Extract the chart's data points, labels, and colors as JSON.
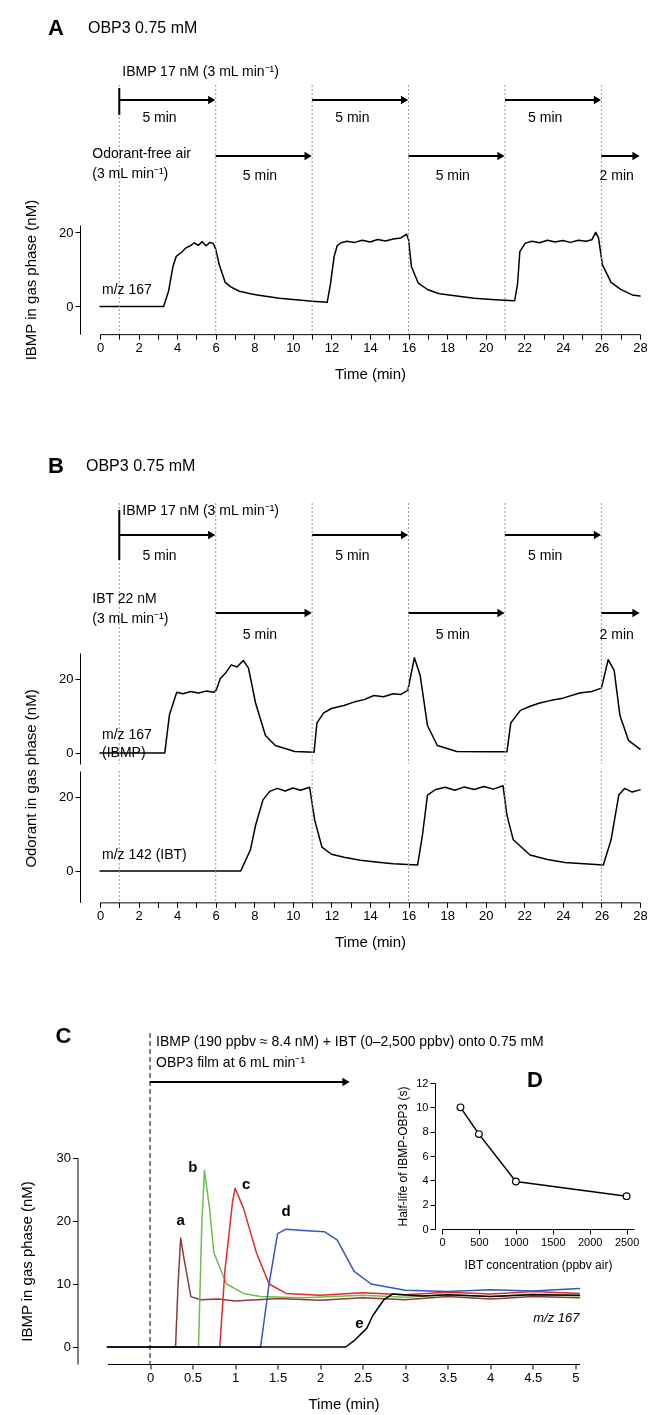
{
  "chart_data": [
    {
      "type": "line",
      "title": "A",
      "subtitle": "OBP3  0.75 mM",
      "xlabel": "Time (min)",
      "ylabel": "IBMP in gas phase (nM)",
      "annotations": [
        "IBMP 17 nM (3 mL min⁻¹)",
        "5 min",
        "5 min",
        "5 min",
        "Odorant-free air (3 mL min⁻¹)",
        "5 min",
        "5 min",
        "2 min"
      ],
      "xlim": [
        0,
        28
      ],
      "ylim": [
        -7.5,
        22
      ],
      "xticks": [
        0,
        {
          "value": 1,
          "label": null
        },
        2,
        {
          "value": 3,
          "label": null
        },
        4,
        {
          "value": 5,
          "label": null
        },
        6,
        {
          "value": 7,
          "label": null
        },
        8,
        {
          "value": 9,
          "label": null
        },
        10,
        {
          "value": 11,
          "label": null
        },
        12,
        {
          "value": 13,
          "label": null
        },
        14,
        {
          "value": 15,
          "label": null
        },
        16,
        {
          "value": 17,
          "label": null
        },
        18,
        {
          "value": 19,
          "label": null
        },
        20,
        {
          "value": 21,
          "label": null
        },
        22,
        {
          "value": 23,
          "label": null
        },
        24,
        {
          "value": 25,
          "label": null
        },
        26,
        {
          "value": 27,
          "label": null
        },
        28
      ],
      "yticks": [
        0,
        20
      ],
      "ref_lines": [
        {
          "axis": "x",
          "value": 1,
          "color": "#999999",
          "line_style": "dotted"
        },
        {
          "axis": "x",
          "value": 6,
          "color": "#999999",
          "line_style": "dotted"
        },
        {
          "axis": "x",
          "value": 11,
          "color": "#999999",
          "line_style": "dotted"
        },
        {
          "axis": "x",
          "value": 16,
          "color": "#999999",
          "line_style": "dotted"
        },
        {
          "axis": "x",
          "value": 21,
          "color": "#999999",
          "line_style": "dotted"
        },
        {
          "axis": "x",
          "value": 26,
          "color": "#999999",
          "line_style": "dotted"
        }
      ],
      "series": [
        {
          "name": "m/z 167",
          "color": "#000000",
          "x": [
            0,
            1,
            2,
            3,
            3.3,
            3.55,
            3.78,
            3.95,
            4.2,
            4.45,
            4.69,
            4.9,
            5.1,
            5.3,
            5.5,
            5.7,
            5.87,
            6.0,
            6.18,
            6.49,
            6.8,
            7.23,
            7.8,
            8.5,
            9.3,
            10.3,
            11.0,
            11.78,
            11.95,
            12.14,
            12.3,
            12.5,
            12.8,
            13.2,
            13.6,
            14.0,
            14.4,
            14.8,
            15.2,
            15.6,
            15.9,
            16.0,
            16.15,
            16.5,
            17.0,
            17.6,
            18.5,
            19.4,
            20.5,
            21.5,
            21.65,
            21.77,
            22.05,
            22.4,
            22.8,
            23.2,
            23.6,
            24.0,
            24.4,
            24.8,
            25.2,
            25.5,
            25.7,
            25.85,
            26.05,
            26.5,
            27.0,
            27.6,
            28
          ],
          "values": [
            0,
            0,
            0,
            0,
            0,
            4,
            10.7,
            13.5,
            14.5,
            15.8,
            16.4,
            17.2,
            16.5,
            17.5,
            16.4,
            17.3,
            17,
            15.5,
            11.3,
            6.5,
            5.2,
            4.1,
            3.4,
            2.8,
            2.2,
            1.7,
            1.4,
            1.1,
            6,
            13.5,
            16.4,
            17.2,
            17.6,
            17.3,
            17.9,
            17.4,
            18.1,
            17.7,
            18.2,
            18.5,
            19.5,
            18,
            10.7,
            6.3,
            4.5,
            3.4,
            2.8,
            2.2,
            1.8,
            1.5,
            6,
            14.8,
            17.1,
            17.6,
            17.2,
            17.9,
            17.4,
            17.8,
            17.3,
            17.9,
            17.6,
            18,
            20,
            18.5,
            11.3,
            6.5,
            4.6,
            3.1,
            2.8
          ]
        }
      ]
    },
    {
      "type": "line",
      "title": "B",
      "subtitle": "OBP3  0.75 mM",
      "annotations": [
        "IBMP 17 nM (3 mL min⁻¹)",
        "5 min",
        "5 min",
        "5 min",
        "IBT 22 nM (3 mL min⁻¹)",
        "5 min",
        "5 min",
        "2 min"
      ],
      "xlim": [
        0,
        28
      ],
      "ylim": [
        -3,
        27
      ],
      "yticks": [
        0,
        20
      ],
      "tick_labels": "y",
      "ref_lines": [
        {
          "axis": "x",
          "value": 1,
          "color": "#999999",
          "line_style": "dotted"
        },
        {
          "axis": "x",
          "value": 6,
          "color": "#999999",
          "line_style": "dotted"
        },
        {
          "axis": "x",
          "value": 11,
          "color": "#999999",
          "line_style": "dotted"
        },
        {
          "axis": "x",
          "value": 16,
          "color": "#999999",
          "line_style": "dotted"
        },
        {
          "axis": "x",
          "value": 21,
          "color": "#999999",
          "line_style": "dotted"
        },
        {
          "axis": "x",
          "value": 26,
          "color": "#999999",
          "line_style": "dotted"
        }
      ],
      "series": [
        {
          "name": "m/z 167 (IBMP)",
          "color": "#000000",
          "x": [
            0,
            1,
            2,
            3,
            3.36,
            3.6,
            3.98,
            4.3,
            4.7,
            5.1,
            5.5,
            5.9,
            6.03,
            6.24,
            6.5,
            6.8,
            7.1,
            7.43,
            7.7,
            8.07,
            8.58,
            9.09,
            10.1,
            11.1,
            11.25,
            11.6,
            12.0,
            12.65,
            13.2,
            13.7,
            14.2,
            14.7,
            15.2,
            15.6,
            15.96,
            16.3,
            16.6,
            16.98,
            17.49,
            18.5,
            20.0,
            21.1,
            21.3,
            21.8,
            22.3,
            22.8,
            23.4,
            24.0,
            24.87,
            25.5,
            26.0,
            26.35,
            26.66,
            26.96,
            27.4,
            28
          ],
          "values": [
            0,
            0,
            0,
            0,
            0,
            10.3,
            16.4,
            16.0,
            16.6,
            16.2,
            16.7,
            16.4,
            17,
            20.1,
            21.5,
            23.8,
            23.2,
            25,
            22.9,
            13.4,
            4.7,
            2,
            0.4,
            0.2,
            8.1,
            10.8,
            12.0,
            12.8,
            13.8,
            14.4,
            15.5,
            15.2,
            16.0,
            15.8,
            16.9,
            25.7,
            21,
            7.4,
            2,
            0.4,
            0.3,
            0.3,
            8.1,
            11.5,
            12.6,
            13.5,
            14.2,
            14.8,
            16.2,
            16.6,
            17.5,
            25.2,
            22.3,
            10.1,
            3.4,
            1
          ]
        }
      ]
    },
    {
      "type": "line",
      "xlabel": "Time (min)",
      "ylabel": "Odorant in gas phase (nM)",
      "xlim": [
        0,
        28
      ],
      "ylim": [
        -8.5,
        27
      ],
      "xticks": [
        0,
        {
          "value": 1,
          "label": null
        },
        2,
        {
          "value": 3,
          "label": null
        },
        4,
        {
          "value": 5,
          "label": null
        },
        6,
        {
          "value": 7,
          "label": null
        },
        8,
        {
          "value": 9,
          "label": null
        },
        10,
        {
          "value": 11,
          "label": null
        },
        12,
        {
          "value": 13,
          "label": null
        },
        14,
        {
          "value": 15,
          "label": null
        },
        16,
        {
          "value": 17,
          "label": null
        },
        18,
        {
          "value": 19,
          "label": null
        },
        20,
        {
          "value": 21,
          "label": null
        },
        22,
        {
          "value": 23,
          "label": null
        },
        24,
        {
          "value": 25,
          "label": null
        },
        26,
        {
          "value": 27,
          "label": null
        },
        28
      ],
      "yticks": [
        0,
        20
      ],
      "ref_lines": [
        {
          "axis": "x",
          "value": 1,
          "color": "#999999",
          "line_style": "dotted"
        },
        {
          "axis": "x",
          "value": 6,
          "color": "#999999",
          "line_style": "dotted"
        },
        {
          "axis": "x",
          "value": 11,
          "color": "#999999",
          "line_style": "dotted"
        },
        {
          "axis": "x",
          "value": 16,
          "color": "#999999",
          "line_style": "dotted"
        },
        {
          "axis": "x",
          "value": 21,
          "color": "#999999",
          "line_style": "dotted"
        },
        {
          "axis": "x",
          "value": 26,
          "color": "#999999",
          "line_style": "dotted"
        }
      ],
      "series": [
        {
          "name": "m/z 142 (IBT)",
          "color": "#000000",
          "x": [
            0,
            2,
            4,
            6,
            7.3,
            7.8,
            8.07,
            8.45,
            8.8,
            9.2,
            9.6,
            10.0,
            10.4,
            10.87,
            11.13,
            11.51,
            12.0,
            12.65,
            13.5,
            14.3,
            15.2,
            16.47,
            16.72,
            16.98,
            17.4,
            17.9,
            18.4,
            18.9,
            19.4,
            19.9,
            20.4,
            20.9,
            21.1,
            21.43,
            22.3,
            23.2,
            24.1,
            25.1,
            26.1,
            26.5,
            26.9,
            27.2,
            27.6,
            28
          ],
          "values": [
            0,
            0,
            0,
            0,
            0,
            5.7,
            12.4,
            19.2,
            21.5,
            22.3,
            21.6,
            22.4,
            21.8,
            22.6,
            13.8,
            6.4,
            4.5,
            3.7,
            2.9,
            2.4,
            1.9,
            1.6,
            9.7,
            20.5,
            22.0,
            22.6,
            21.8,
            22.7,
            22.0,
            22.8,
            22.1,
            23,
            15.1,
            8.4,
            4.3,
            3.1,
            2.3,
            1.9,
            1.6,
            8.4,
            20.5,
            22.3,
            21.3,
            21.9
          ]
        }
      ]
    },
    {
      "type": "line",
      "title": "C",
      "xlabel": "Time (min)",
      "ylabel": "IBMP in gas phase (nM)",
      "annotations": [
        "IBMP (190 ppbv ≈ 8.4 nM) + IBT (0–2,500 ppbv) onto 0.75 mM",
        "OBP3 film at 6 mL min⁻¹",
        "m/z 167"
      ],
      "xlim": [
        -0.5,
        5.05
      ],
      "ylim": [
        -2.7,
        30
      ],
      "xticks": [
        0,
        0.5,
        1,
        1.5,
        2,
        2.5,
        3,
        3.5,
        4,
        4.5,
        5
      ],
      "yticks": [
        0,
        10,
        20,
        30
      ],
      "ref_lines": [
        {
          "axis": "x",
          "value": 0,
          "color": "#000000",
          "line_style": "dashed"
        }
      ],
      "series": [
        {
          "name": "a",
          "color": "#8b3a3a",
          "x": [
            -0.5,
            0,
            0.3,
            0.33,
            0.36,
            0.4,
            0.48,
            0.6,
            0.8,
            1.0,
            1.5,
            2,
            2.5,
            3,
            3.5,
            4,
            4.5,
            5.05
          ],
          "values": [
            0,
            0,
            0,
            10,
            17.3,
            14,
            8,
            7.5,
            7.6,
            7.3,
            7.7,
            7.4,
            7.8,
            7.5,
            8,
            7.6,
            8,
            7.8
          ]
        },
        {
          "name": "b",
          "color": "#6cbf4e",
          "x": [
            -0.5,
            0.57,
            0.61,
            0.64,
            0.7,
            0.75,
            0.9,
            1.1,
            1.3,
            1.8,
            2.5,
            3,
            3.5,
            4,
            4.5,
            5.05
          ],
          "values": [
            0,
            0,
            20,
            28,
            22,
            15,
            10,
            8.5,
            8,
            7.8,
            8.2,
            7.9,
            8.3,
            8,
            8.4,
            8.1
          ]
        },
        {
          "name": "c",
          "color": "#e02b2b",
          "x": [
            -0.5,
            0.82,
            0.88,
            0.97,
            1.0,
            1.1,
            1.25,
            1.4,
            1.6,
            2,
            2.5,
            3,
            3.5,
            4,
            4.5,
            5.05
          ],
          "values": [
            0,
            0,
            12,
            23,
            25.2,
            22,
            15,
            10,
            8.5,
            8.2,
            8.6,
            8.3,
            8.7,
            8.4,
            8.8,
            8.5
          ]
        },
        {
          "name": "d",
          "color": "#3355c4",
          "x": [
            -0.5,
            1.3,
            1.35,
            1.4,
            1.5,
            1.6,
            1.8,
            2.05,
            2.2,
            2.4,
            2.6,
            3,
            3.5,
            4,
            4.5,
            5.05
          ],
          "values": [
            0,
            0,
            5,
            10,
            18,
            18.7,
            18.5,
            18.3,
            17,
            12,
            10,
            9,
            8.8,
            9.1,
            8.9,
            9.3
          ]
        },
        {
          "name": "e",
          "color": "#000000",
          "x": [
            -0.5,
            2.3,
            2.4,
            2.55,
            2.62,
            2.75,
            2.85,
            3.2,
            3.5,
            4,
            4.5,
            5.05
          ],
          "values": [
            0,
            0,
            1,
            3,
            5,
            7.5,
            8.4,
            8.1,
            8.3,
            8,
            8.3,
            8.2
          ]
        }
      ]
    },
    {
      "type": "line",
      "title": "D",
      "xlabel": "IBT concentration (ppbv air)",
      "ylabel": "Half-life of IBMP-OBP3 (s)",
      "xlim": [
        0,
        2600
      ],
      "ylim": [
        0,
        12
      ],
      "xticks": [
        0,
        500,
        1000,
        1500,
        2000,
        2500
      ],
      "yticks": [
        0,
        2,
        4,
        6,
        8,
        10,
        12
      ],
      "marker": "circle",
      "series": [
        {
          "color": "#000000",
          "x": [
            250,
            500,
            1000,
            2500
          ],
          "values": [
            10,
            7.8,
            3.9,
            2.7
          ]
        }
      ]
    }
  ]
}
